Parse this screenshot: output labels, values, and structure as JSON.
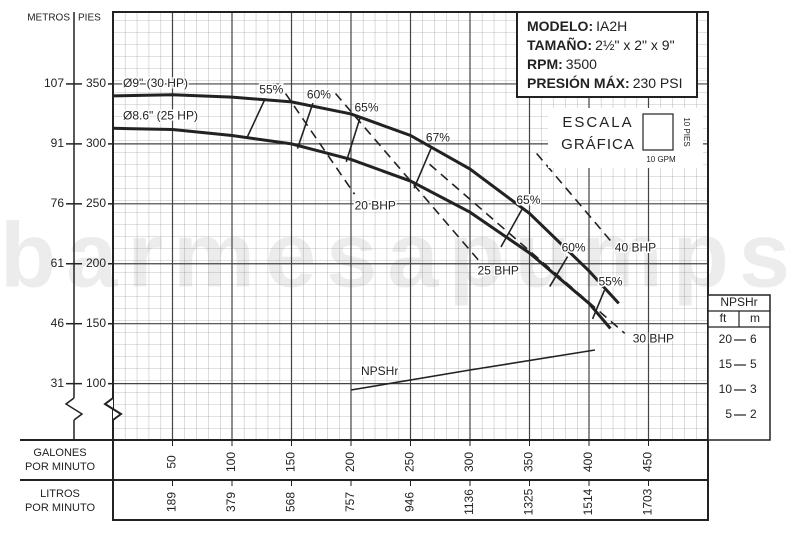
{
  "chart_data": {
    "type": "line",
    "watermark": "barmesapumps",
    "y_label_left": "METROS",
    "y_label": "PIES",
    "x_label": [
      "GALONES",
      "POR MINUTO"
    ],
    "x2_label": [
      "LITROS",
      "POR MINUTO"
    ],
    "xlim": [
      0,
      500
    ],
    "ylim": [
      53,
      410
    ],
    "y2lim": [
      0,
      85.6
    ],
    "xticks": [
      50,
      100,
      150,
      200,
      250,
      300,
      350,
      400,
      450
    ],
    "x2ticks": [
      {
        "value": 50,
        "label": "189"
      },
      {
        "value": 100,
        "label": "379"
      },
      {
        "value": 150,
        "label": "568"
      },
      {
        "value": 200,
        "label": "757"
      },
      {
        "value": 250,
        "label": "946"
      },
      {
        "value": 300,
        "label": "1136"
      },
      {
        "value": 350,
        "label": "1325"
      },
      {
        "value": 400,
        "label": "1514"
      },
      {
        "value": 450,
        "label": "1703"
      }
    ],
    "yticks": [
      100,
      150,
      200,
      250,
      300,
      350
    ],
    "y_secondary_ticks": [
      {
        "value": 100,
        "label": "31"
      },
      {
        "value": 150,
        "label": "46"
      },
      {
        "value": 200,
        "label": "61"
      },
      {
        "value": 250,
        "label": "76"
      },
      {
        "value": 300,
        "label": "91"
      },
      {
        "value": 350,
        "label": "107"
      }
    ],
    "y2_title": "NPSHr",
    "y2_units": [
      "ft",
      "m"
    ],
    "y2ticks": [
      5,
      10,
      15,
      20
    ],
    "y2_secondary_ticks": [
      {
        "value": 5,
        "label": "2"
      },
      {
        "value": 10,
        "label": "3"
      },
      {
        "value": 15,
        "label": "5"
      },
      {
        "value": 20,
        "label": "6"
      }
    ],
    "grid": true,
    "series": [
      {
        "name": "Ø9\" (30 HP)",
        "color": "#222222",
        "x": [
          0,
          50,
          100,
          150,
          200,
          250,
          300,
          350,
          400,
          425
        ],
        "values": [
          340,
          341,
          339,
          335,
          325,
          307,
          279,
          242,
          194,
          167
        ]
      },
      {
        "name": "Ø8.6\" (25 HP)",
        "color": "#222222",
        "x": [
          0,
          50,
          100,
          150,
          200,
          250,
          300,
          350,
          400,
          418
        ],
        "values": [
          313,
          312,
          307,
          300,
          287,
          269,
          243,
          209,
          167,
          146
        ]
      },
      {
        "name": "20 BHP",
        "color": "#222222",
        "dashed": true,
        "x": [
          145,
          203
        ],
        "values": [
          342,
          258
        ]
      },
      {
        "name": "25 BHP",
        "color": "#222222",
        "dashed": true,
        "x": [
          187,
          308
        ],
        "values": [
          342,
          202
        ]
      },
      {
        "name": "30 BHP",
        "color": "#222222",
        "dashed": true,
        "x": [
          266,
          430
        ],
        "values": [
          283,
          142
        ]
      },
      {
        "name": "40 BHP",
        "color": "#222222",
        "dashed": true,
        "x": [
          356,
          420
        ],
        "values": [
          292,
          217
        ]
      },
      {
        "name": "NPSHr",
        "color": "#222222",
        "axis": "y2",
        "x": [
          200,
          300,
          405
        ],
        "values": [
          10,
          14,
          18
        ]
      }
    ],
    "efficiency_lines": [
      {
        "name": "55%",
        "x": [
          128,
          113
        ],
        "values": [
          338,
          306
        ]
      },
      {
        "name": "60%",
        "x": [
          168,
          155
        ],
        "values": [
          334,
          296
        ]
      },
      {
        "name": "65%",
        "x": [
          208,
          196
        ],
        "values": [
          323,
          285
        ]
      },
      {
        "name": "67%",
        "x": [
          268,
          253
        ],
        "values": [
          298,
          263
        ]
      },
      {
        "name": "65%",
        "x": [
          344,
          326
        ],
        "values": [
          246,
          214
        ]
      },
      {
        "name": "60%",
        "x": [
          382,
          367
        ],
        "values": [
          206,
          181
        ]
      },
      {
        "name": "55%",
        "x": [
          413,
          403
        ],
        "values": [
          178,
          154
        ]
      }
    ],
    "info_box": [
      {
        "key": "MODELO:",
        "value": "IA2H"
      },
      {
        "key": "TAMAÑO:",
        "value": "2½\" x 2\" x 9\""
      },
      {
        "key": "RPM:",
        "value": "3500"
      },
      {
        "key": "PRESIÓN MÁX:",
        "value": "230 PSI"
      }
    ],
    "scale_box": {
      "title": [
        "ESCALA",
        "GRÁFICA"
      ],
      "height_label": "10 PIES",
      "width_label": "10 GPM"
    }
  }
}
